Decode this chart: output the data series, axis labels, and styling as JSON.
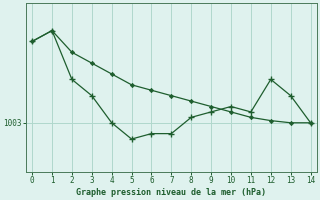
{
  "x": [
    0,
    1,
    2,
    3,
    4,
    5,
    6,
    7,
    8,
    9,
    10,
    11,
    12,
    13,
    14
  ],
  "line_upper": [
    1010.5,
    1011.5,
    1009.5,
    1008.5,
    1007.5,
    1006.5,
    1006.0,
    1005.5,
    1005.0,
    1004.5,
    1004.0,
    1003.5,
    1003.2,
    1003.0,
    1003.0
  ],
  "line_lower": [
    1010.5,
    1011.5,
    1007.0,
    1005.5,
    1003.0,
    1001.5,
    1002.0,
    1002.0,
    1003.5,
    1004.0,
    1004.5,
    1004.0,
    1007.0,
    1005.5,
    1003.0
  ],
  "ytick_label": "1003",
  "ytick_value": 1003,
  "xlabel": "Graphe pression niveau de la mer (hPa)",
  "bg_color": "#dff2ee",
  "line_color": "#1e5e2e",
  "grid_color": "#b0d8cc",
  "axis_color": "#4a7a5a",
  "tick_color": "#1e5e2e",
  "ylim": [
    998.5,
    1014.0
  ],
  "xlim": [
    -0.3,
    14.3
  ],
  "figsize": [
    3.2,
    2.0
  ],
  "dpi": 100
}
